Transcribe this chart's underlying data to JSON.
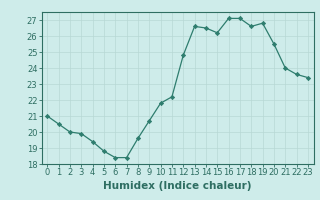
{
  "x": [
    0,
    1,
    2,
    3,
    4,
    5,
    6,
    7,
    8,
    9,
    10,
    11,
    12,
    13,
    14,
    15,
    16,
    17,
    18,
    19,
    20,
    21,
    22,
    23
  ],
  "y": [
    21.0,
    20.5,
    20.0,
    19.9,
    19.4,
    18.8,
    18.4,
    18.4,
    19.6,
    20.7,
    21.8,
    22.2,
    24.8,
    26.6,
    26.5,
    26.2,
    27.1,
    27.1,
    26.6,
    26.8,
    25.5,
    24.0,
    23.6,
    23.4
  ],
  "line_color": "#2e7d6e",
  "marker": "D",
  "marker_size": 2.2,
  "bg_color": "#ceecea",
  "grid_color": "#b8d8d5",
  "xlabel": "Humidex (Indice chaleur)",
  "xlim": [
    -0.5,
    23.5
  ],
  "ylim": [
    18,
    27.5
  ],
  "yticks": [
    18,
    19,
    20,
    21,
    22,
    23,
    24,
    25,
    26,
    27
  ],
  "xtick_labels": [
    "0",
    "1",
    "2",
    "3",
    "4",
    "5",
    "6",
    "7",
    "8",
    "9",
    "10",
    "11",
    "12",
    "13",
    "14",
    "15",
    "16",
    "17",
    "18",
    "19",
    "20",
    "21",
    "22",
    "23"
  ],
  "tick_fontsize": 6.0,
  "xlabel_fontsize": 7.5,
  "label_color": "#2e6e62"
}
